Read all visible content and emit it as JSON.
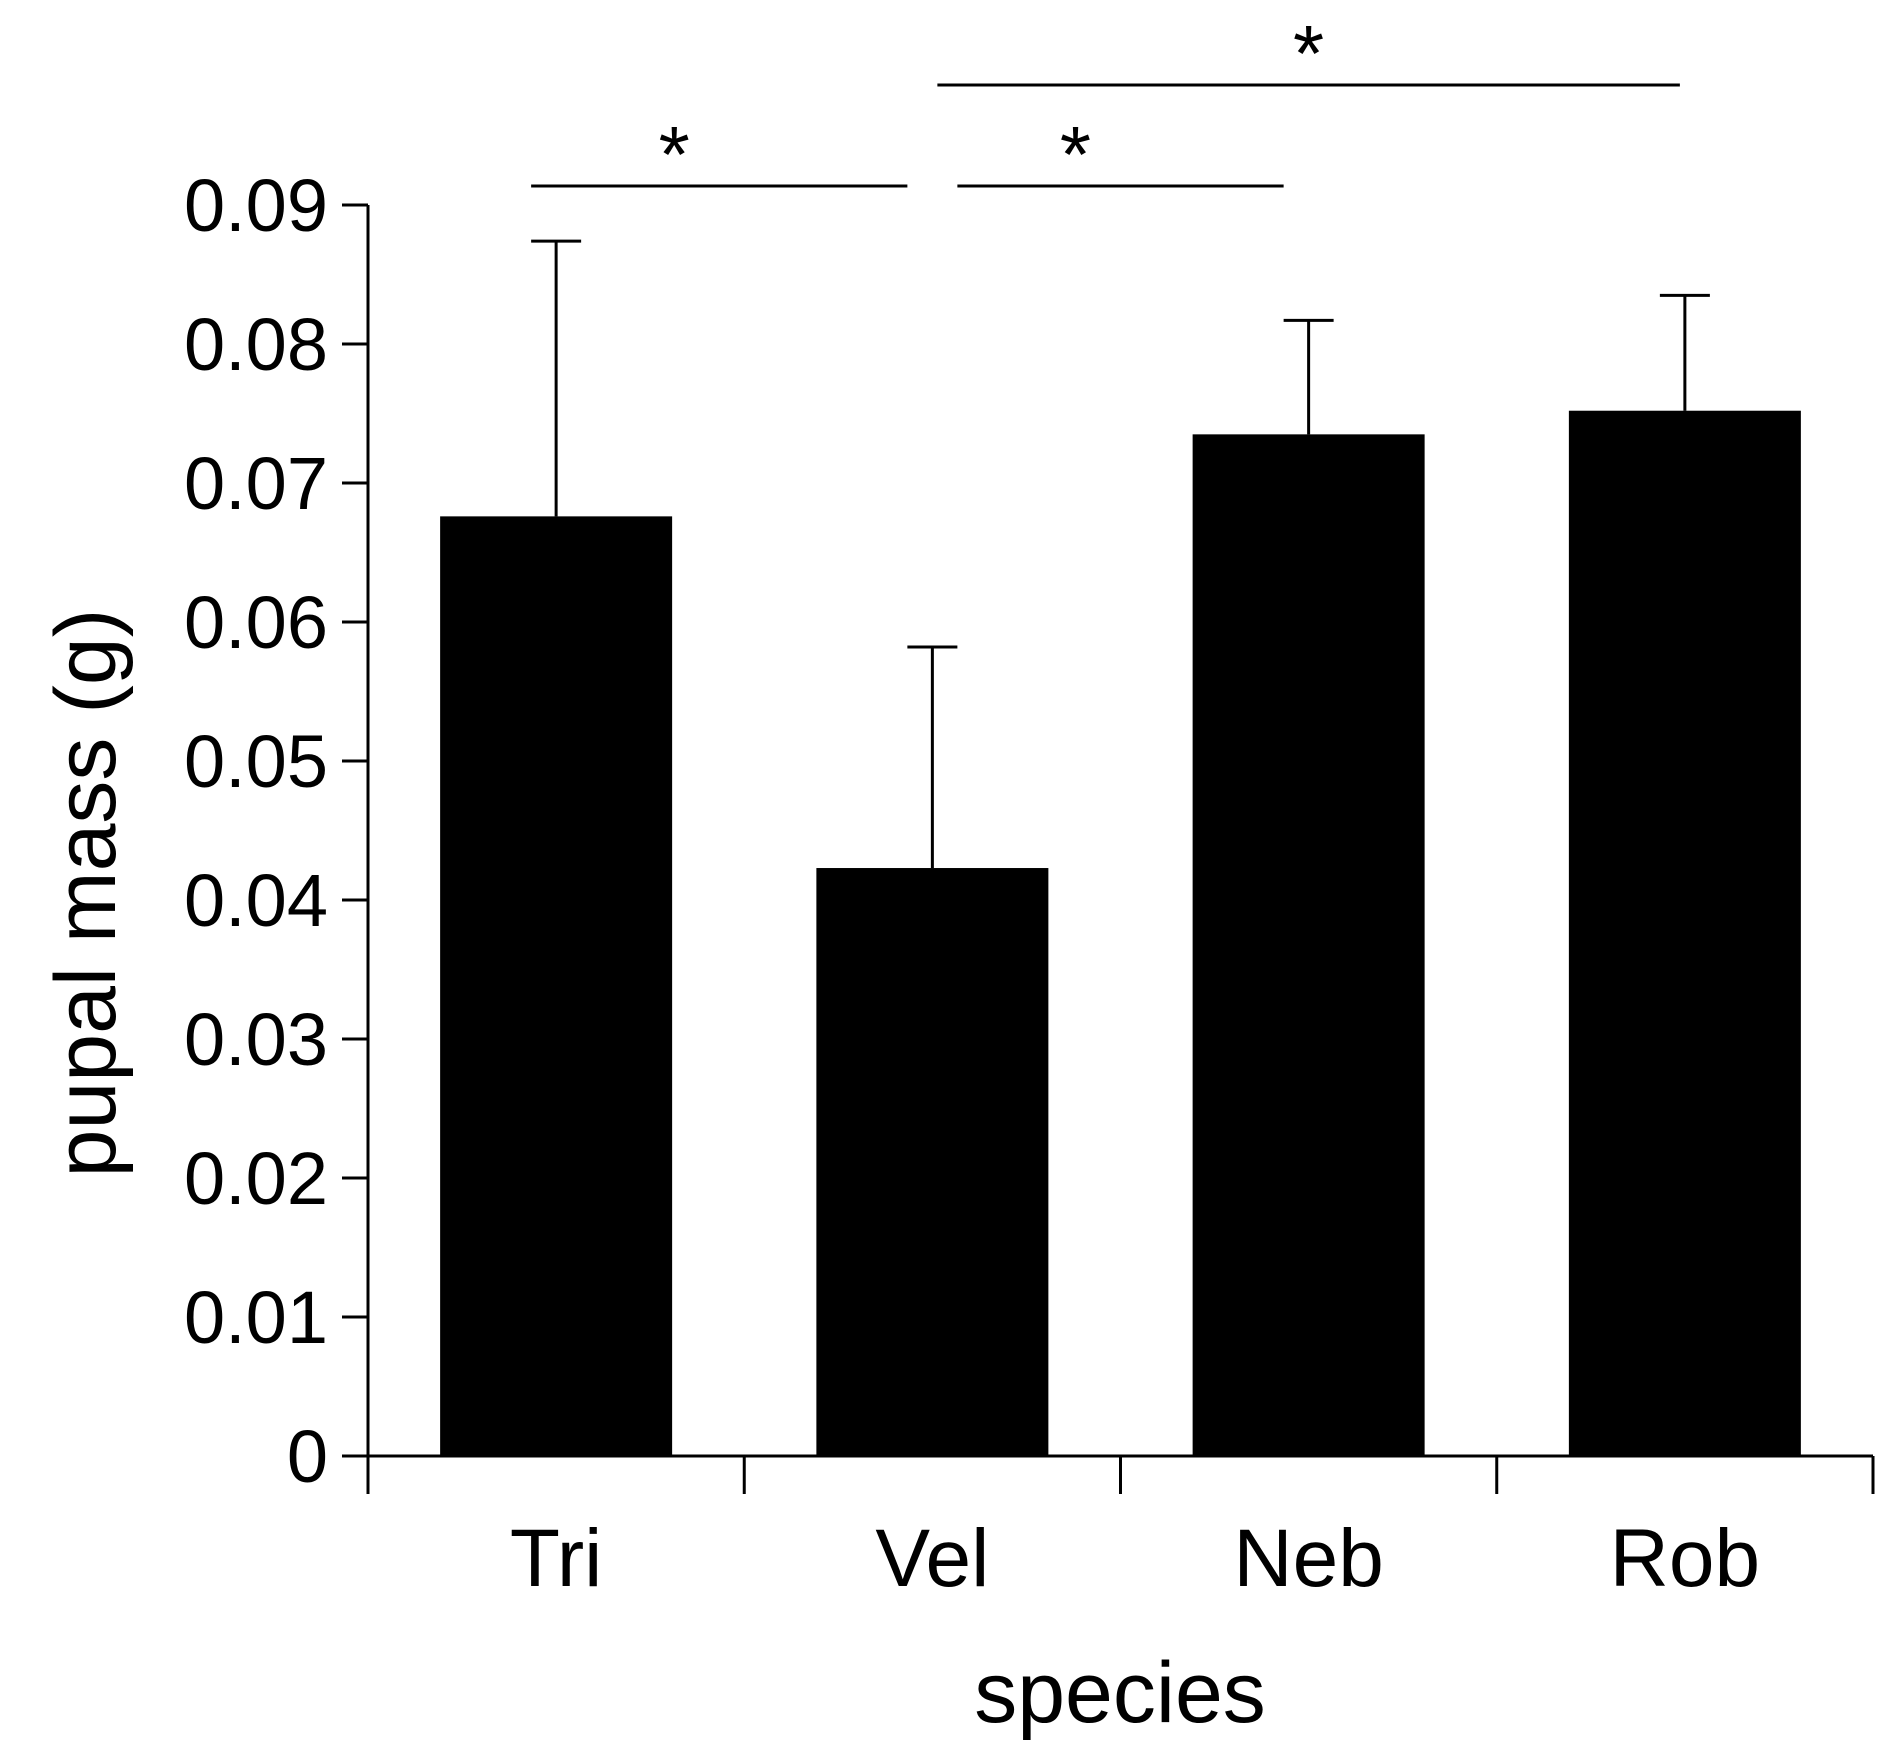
{
  "chart_data": {
    "type": "bar",
    "title": "",
    "xlabel": "species",
    "ylabel": "pupal mass (g)",
    "ylim": [
      0,
      0.09
    ],
    "yticks": [
      0,
      0.01,
      0.02,
      0.03,
      0.04,
      0.05,
      0.06,
      0.07,
      0.08,
      0.09
    ],
    "ytick_labels": [
      "0",
      "0.01",
      "0.02",
      "0.03",
      "0.04",
      "0.05",
      "0.06",
      "0.07",
      "0.08",
      "0.09"
    ],
    "categories": [
      "Tri",
      "Vel",
      "Neb",
      "Rob"
    ],
    "values": [
      0.0676,
      0.0423,
      0.0735,
      0.0752
    ],
    "error_upper": [
      0.0874,
      0.0582,
      0.0817,
      0.0835
    ],
    "bar_color": "#000000",
    "grid": false,
    "significance": [
      {
        "from": "Tri",
        "to": "Vel",
        "label": "*",
        "level": 1
      },
      {
        "from": "Vel",
        "to": "Neb",
        "label": "*",
        "level": 1
      },
      {
        "from": "Vel",
        "to": "Rob",
        "label": "*",
        "level": 2
      }
    ]
  }
}
